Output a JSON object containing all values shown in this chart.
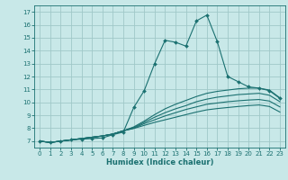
{
  "title": "",
  "xlabel": "Humidex (Indice chaleur)",
  "bg_color": "#c8e8e8",
  "grid_color": "#a0c8c8",
  "line_color": "#1a7070",
  "xlim": [
    -0.5,
    23.5
  ],
  "ylim": [
    6.5,
    17.5
  ],
  "xticks": [
    0,
    1,
    2,
    3,
    4,
    5,
    6,
    7,
    8,
    9,
    10,
    11,
    12,
    13,
    14,
    15,
    16,
    17,
    18,
    19,
    20,
    21,
    22,
    23
  ],
  "yticks": [
    7,
    8,
    9,
    10,
    11,
    12,
    13,
    14,
    15,
    16,
    17
  ],
  "series_with_markers": [
    [
      7.0,
      6.9,
      7.0,
      7.1,
      7.15,
      7.2,
      7.25,
      7.5,
      7.7,
      9.6,
      10.9,
      13.0,
      14.8,
      14.65,
      14.35,
      16.3,
      16.75,
      14.7,
      12.0,
      11.6,
      11.2,
      11.1,
      10.9,
      10.3
    ]
  ],
  "series_smooth": [
    [
      7.0,
      6.9,
      7.0,
      7.1,
      7.2,
      7.3,
      7.4,
      7.55,
      7.8,
      8.1,
      8.55,
      9.05,
      9.5,
      9.85,
      10.15,
      10.45,
      10.7,
      10.85,
      10.95,
      11.05,
      11.1,
      11.1,
      10.95,
      10.35
    ],
    [
      7.0,
      6.9,
      7.0,
      7.1,
      7.2,
      7.3,
      7.4,
      7.55,
      7.8,
      8.05,
      8.45,
      8.85,
      9.2,
      9.5,
      9.75,
      10.05,
      10.25,
      10.4,
      10.5,
      10.6,
      10.65,
      10.7,
      10.55,
      10.05
    ],
    [
      7.0,
      6.9,
      7.0,
      7.1,
      7.2,
      7.3,
      7.4,
      7.55,
      7.8,
      8.0,
      8.35,
      8.65,
      8.95,
      9.2,
      9.45,
      9.65,
      9.85,
      9.95,
      10.05,
      10.12,
      10.18,
      10.22,
      10.1,
      9.65
    ],
    [
      7.0,
      6.9,
      7.0,
      7.1,
      7.2,
      7.3,
      7.4,
      7.55,
      7.8,
      7.98,
      8.22,
      8.45,
      8.65,
      8.85,
      9.05,
      9.25,
      9.42,
      9.52,
      9.6,
      9.68,
      9.75,
      9.8,
      9.68,
      9.25
    ]
  ]
}
